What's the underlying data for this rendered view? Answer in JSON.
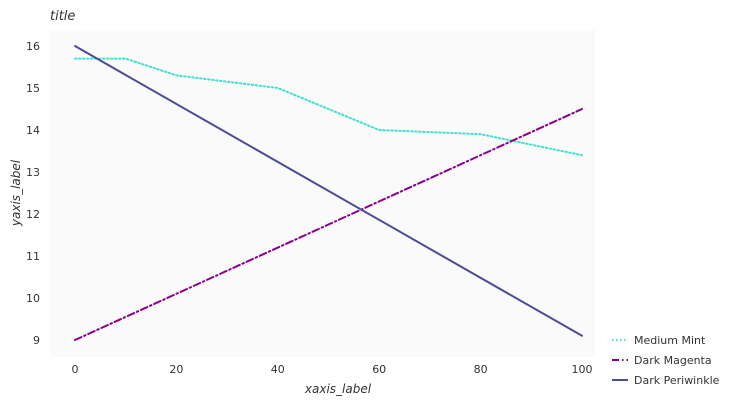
{
  "chart_data": {
    "type": "line",
    "title": "title",
    "xlabel": "xaxis_label",
    "ylabel": "yaxis_label",
    "xlim": [
      0,
      100
    ],
    "ylim": [
      9,
      16
    ],
    "xticks": [
      0,
      20,
      40,
      60,
      80,
      100
    ],
    "yticks": [
      9,
      10,
      11,
      12,
      13,
      14,
      15,
      16
    ],
    "grid": false,
    "legend_position": "right",
    "series": [
      {
        "name": "Medium Mint",
        "color": "#40e0d0",
        "dash": "dotted",
        "x": [
          0,
          10,
          20,
          40,
          60,
          80,
          100
        ],
        "y": [
          15.7,
          15.7,
          15.3,
          15.0,
          14.0,
          13.9,
          13.4
        ]
      },
      {
        "name": "Dark Magenta",
        "color": "#8b008b",
        "dash": "dashdot",
        "x": [
          0,
          100
        ],
        "y": [
          9.0,
          14.5
        ]
      },
      {
        "name": "Dark Periwinkle",
        "color": "#4b4b9a",
        "dash": "solid",
        "x": [
          0,
          100
        ],
        "y": [
          16.0,
          9.1
        ]
      }
    ]
  }
}
